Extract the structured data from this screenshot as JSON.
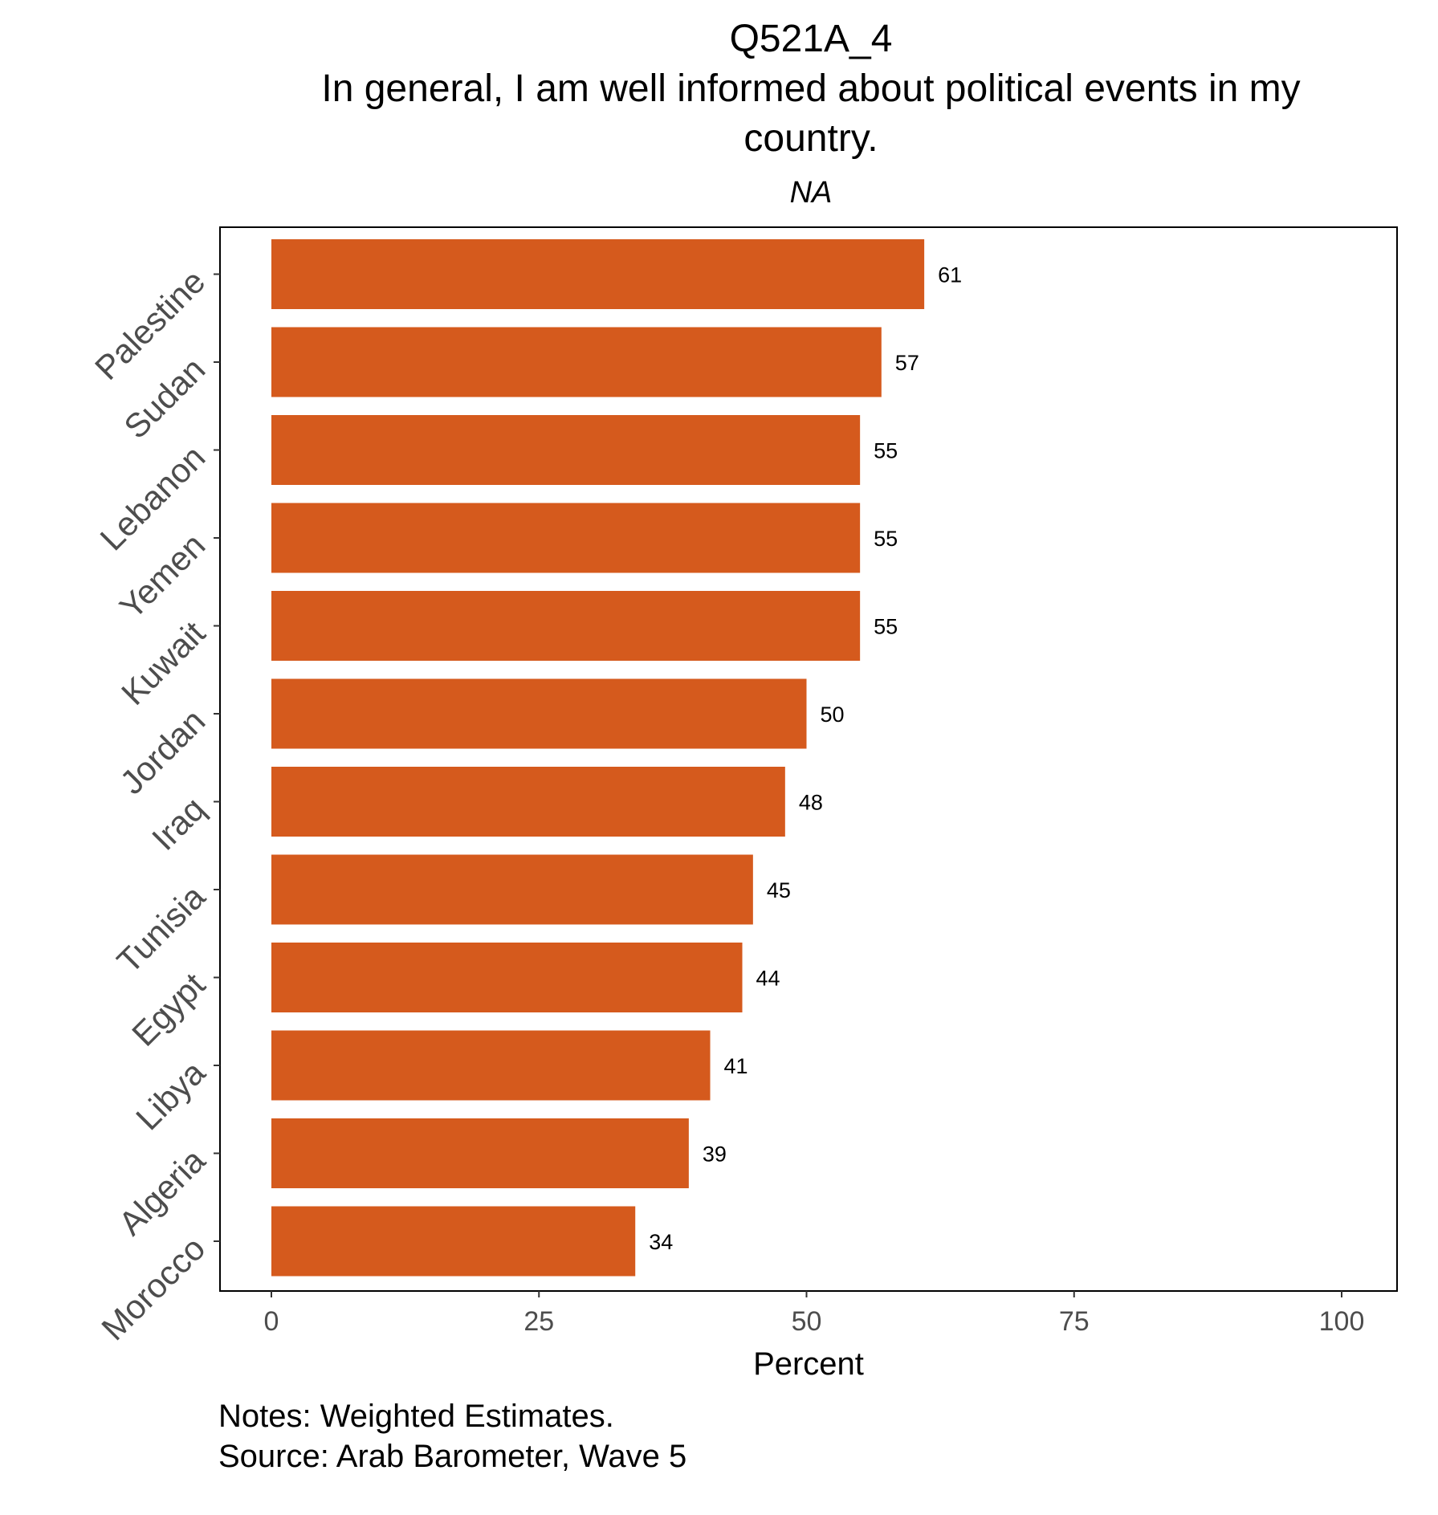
{
  "chart_data": {
    "type": "bar",
    "orientation": "horizontal",
    "title_lines": [
      "Q521A_4",
      "In general, I am well informed about political events in my",
      "country."
    ],
    "subtitle": "NA",
    "xlabel": "Percent",
    "ylabel": "",
    "categories": [
      "Palestine",
      "Sudan",
      "Lebanon",
      "Yemen",
      "Kuwait",
      "Jordan",
      "Iraq",
      "Tunisia",
      "Egypt",
      "Libya",
      "Algeria",
      "Morocco"
    ],
    "values": [
      61,
      57,
      55,
      55,
      55,
      50,
      48,
      45,
      44,
      41,
      39,
      34
    ],
    "data_labels": [
      "61",
      "57",
      "55",
      "55",
      "55",
      "50",
      "48",
      "45",
      "44",
      "41",
      "39",
      "34"
    ],
    "xlim": [
      0,
      100
    ],
    "x_ticks": [
      0,
      25,
      50,
      75,
      100
    ],
    "x_tick_labels": [
      "0",
      "25",
      "50",
      "75",
      "100"
    ],
    "bar_color": "#D55A1D",
    "grid": false,
    "legend": "none",
    "caption_lines": [
      "Notes: Weighted Estimates.",
      "Source: Arab Barometer, Wave 5"
    ]
  }
}
